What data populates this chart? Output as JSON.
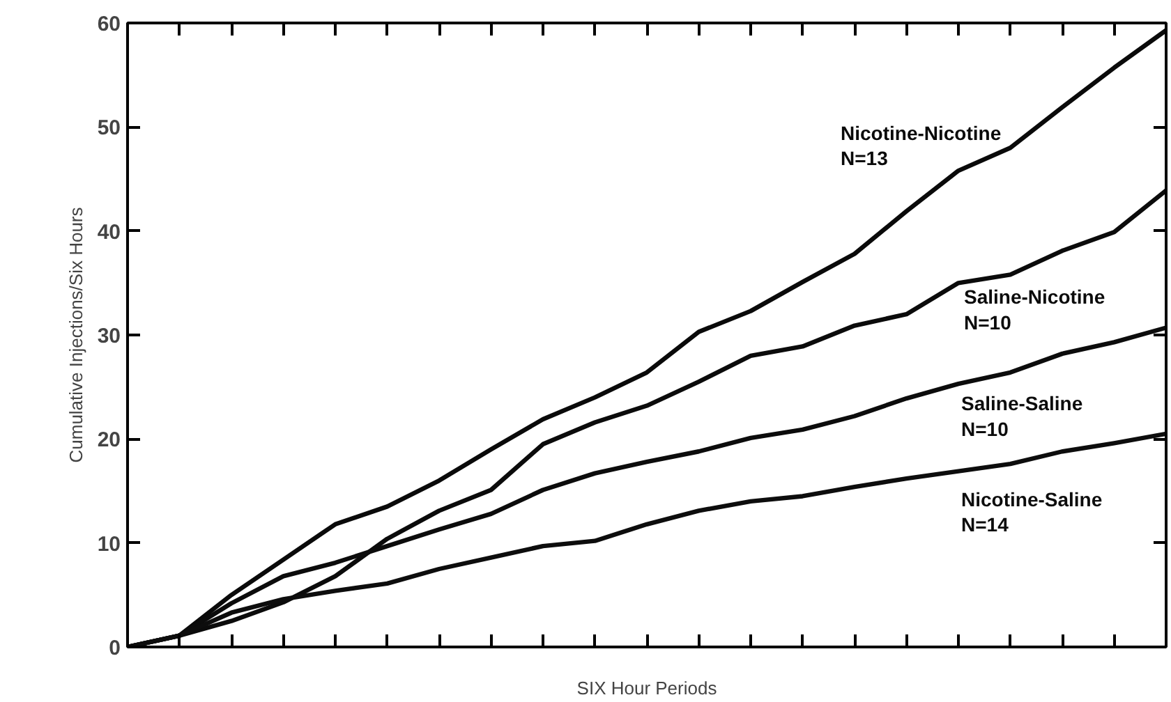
{
  "chart_data": {
    "type": "line",
    "xlabel": "SIX Hour Periods",
    "ylabel": "Cumulative Injections/Six Hours",
    "categories": [
      null,
      null,
      null,
      null,
      null,
      null,
      null,
      null,
      null,
      null,
      null,
      null,
      null,
      null,
      null,
      null,
      null,
      null,
      null,
      null,
      null
    ],
    "series": [
      {
        "name": "Nicotine-Nicotine\nN=13",
        "color": "#0a0a0a",
        "values": [
          0,
          1.1,
          5,
          8.4,
          11.8,
          13.5,
          16,
          19,
          21.9,
          24,
          26.4,
          30.3,
          32.3,
          35.1,
          37.8,
          41.9,
          45.8,
          48,
          51.9,
          55.7,
          59.3
        ]
      },
      {
        "name": "Saline-Nicotine\nN=10",
        "color": "#0b0b0b",
        "values": [
          0,
          1.1,
          2.5,
          4.3,
          6.8,
          10.4,
          13.1,
          15.1,
          19.5,
          21.6,
          23.2,
          25.5,
          28,
          28.9,
          30.9,
          32,
          35,
          35.8,
          38.1,
          39.9,
          43.9
        ]
      },
      {
        "name": "Saline-Saline\nN=10",
        "color": "#0c0c0c",
        "values": [
          0,
          1.1,
          4.2,
          6.8,
          8.1,
          9.7,
          11.3,
          12.8,
          15.1,
          16.7,
          17.8,
          18.8,
          20.1,
          20.9,
          22.2,
          23.9,
          25.3,
          26.4,
          28.2,
          29.3,
          30.7
        ]
      },
      {
        "name": "Nicotine-Saline\nN=14",
        "color": "#0d0d0d",
        "values": [
          0,
          1.1,
          3.3,
          4.6,
          5.4,
          6.1,
          7.5,
          8.6,
          9.7,
          10.2,
          11.8,
          13.1,
          14,
          14.5,
          15.4,
          16.2,
          16.9,
          17.6,
          18.8,
          19.6,
          20.5
        ]
      }
    ],
    "ylim": [
      0,
      60
    ],
    "yticks": [
      0,
      10,
      20,
      30,
      40,
      50,
      60
    ],
    "tick_labels": "y",
    "grid": false,
    "legend": false,
    "marker": "none",
    "line_style": "solid"
  }
}
